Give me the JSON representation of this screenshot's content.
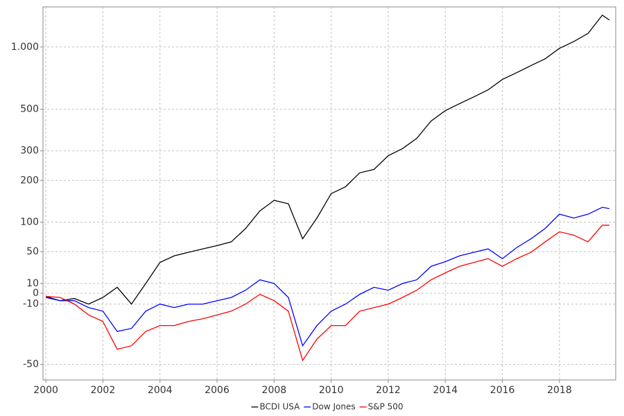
{
  "chart_data": {
    "type": "line",
    "x": [
      2000,
      2000.5,
      2001,
      2001.5,
      2002,
      2002.5,
      2003,
      2003.5,
      2004,
      2004.5,
      2005,
      2005.5,
      2006,
      2006.5,
      2007,
      2007.5,
      2008,
      2008.5,
      2009,
      2009.5,
      2010,
      2010.5,
      2011,
      2011.5,
      2012,
      2012.5,
      2013,
      2013.5,
      2014,
      2014.5,
      2015,
      2015.5,
      2016,
      2016.5,
      2017,
      2017.5,
      2018,
      2018.5,
      2019,
      2019.5,
      2019.75
    ],
    "series": [
      {
        "name": "BCDI USA",
        "color": "#000000",
        "values": [
          -3,
          -7,
          -5,
          -10,
          -4,
          6,
          -10,
          10,
          35,
          44,
          49,
          54,
          59,
          65,
          88,
          123,
          147,
          139,
          70,
          108,
          164,
          182,
          223,
          234,
          282,
          309,
          352,
          435,
          492,
          534,
          577,
          625,
          702,
          757,
          818,
          881,
          986,
          1060,
          1155,
          1400,
          1330
        ]
      },
      {
        "name": "Dow Jones",
        "color": "#0000ff",
        "values": [
          -4,
          -7,
          -7,
          -13,
          -16,
          -31,
          -29,
          -16,
          -10,
          -13,
          -10,
          -10,
          -7,
          -4,
          3,
          14,
          10,
          -4,
          -40,
          -27,
          -16,
          -10,
          -1,
          6,
          3,
          10,
          14,
          30,
          36,
          44,
          49,
          54,
          40,
          56,
          70,
          88,
          116,
          108,
          116,
          131,
          128
        ]
      },
      {
        "name": "S&P 500",
        "color": "#ff0000",
        "values": [
          -3,
          -4,
          -10,
          -19,
          -24,
          -42,
          -40,
          -31,
          -27,
          -27,
          -24,
          -22,
          -19,
          -16,
          -10,
          -1,
          -7,
          -16,
          -48,
          -36,
          -27,
          -27,
          -16,
          -13,
          -10,
          -4,
          3,
          14,
          22,
          30,
          35,
          40,
          30,
          40,
          49,
          65,
          82,
          76,
          65,
          94,
          94
        ]
      }
    ],
    "xlim": [
      1999.9,
      2019.97
    ],
    "xticks": [
      2000,
      2002,
      2004,
      2006,
      2008,
      2010,
      2012,
      2014,
      2016,
      2018
    ],
    "ylim": [
      -57,
      1525
    ],
    "yticks": [
      -50,
      -10,
      0,
      10,
      50,
      100,
      200,
      300,
      500,
      {
        "value": 1000,
        "label": "1.000"
      }
    ],
    "yscale": "log-return",
    "grid": true,
    "legend": "bottom"
  }
}
